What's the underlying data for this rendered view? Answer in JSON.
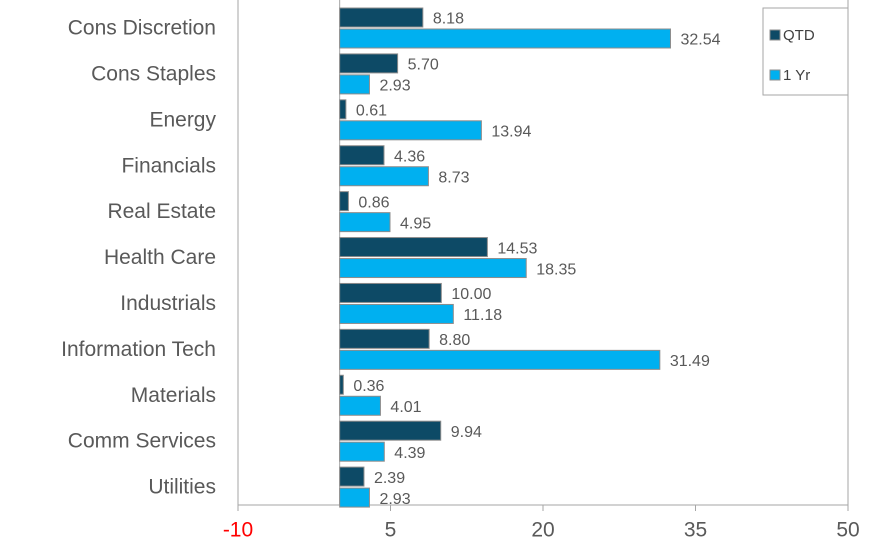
{
  "chart_data": {
    "type": "hbar",
    "categories": [
      "Cons Discretion",
      "Cons Staples",
      "Energy",
      "Financials",
      "Real Estate",
      "Health Care",
      "Industrials",
      "Information Tech",
      "Materials",
      "Comm Services",
      "Utilities"
    ],
    "series": [
      {
        "name": "QTD",
        "color": "#0d4a66",
        "values": [
          8.18,
          5.7,
          0.61,
          4.36,
          0.86,
          14.53,
          10.0,
          8.8,
          0.36,
          9.94,
          2.39
        ],
        "value_labels": [
          "8.18",
          "5.70",
          "0.61",
          "4.36",
          "0.86",
          "14.53",
          "10.00",
          "8.80",
          "0.36",
          "9.94",
          "2.39"
        ]
      },
      {
        "name": "1 Yr",
        "color": "#00b0f0",
        "values": [
          32.54,
          2.93,
          13.94,
          8.73,
          4.95,
          18.35,
          11.18,
          31.49,
          4.01,
          4.39,
          2.93
        ],
        "value_labels": [
          "32.54",
          "2.93",
          "13.94",
          "8.73",
          "4.95",
          "18.35",
          "11.18",
          "31.49",
          "4.01",
          "4.39",
          "2.93"
        ]
      }
    ],
    "xlim": [
      -10,
      50
    ],
    "xticks": [
      -10,
      5,
      20,
      35,
      50
    ],
    "xtick_label_colors": [
      "#ff0000",
      "#595959",
      "#595959",
      "#595959",
      "#595959"
    ],
    "legend": "upper right"
  }
}
